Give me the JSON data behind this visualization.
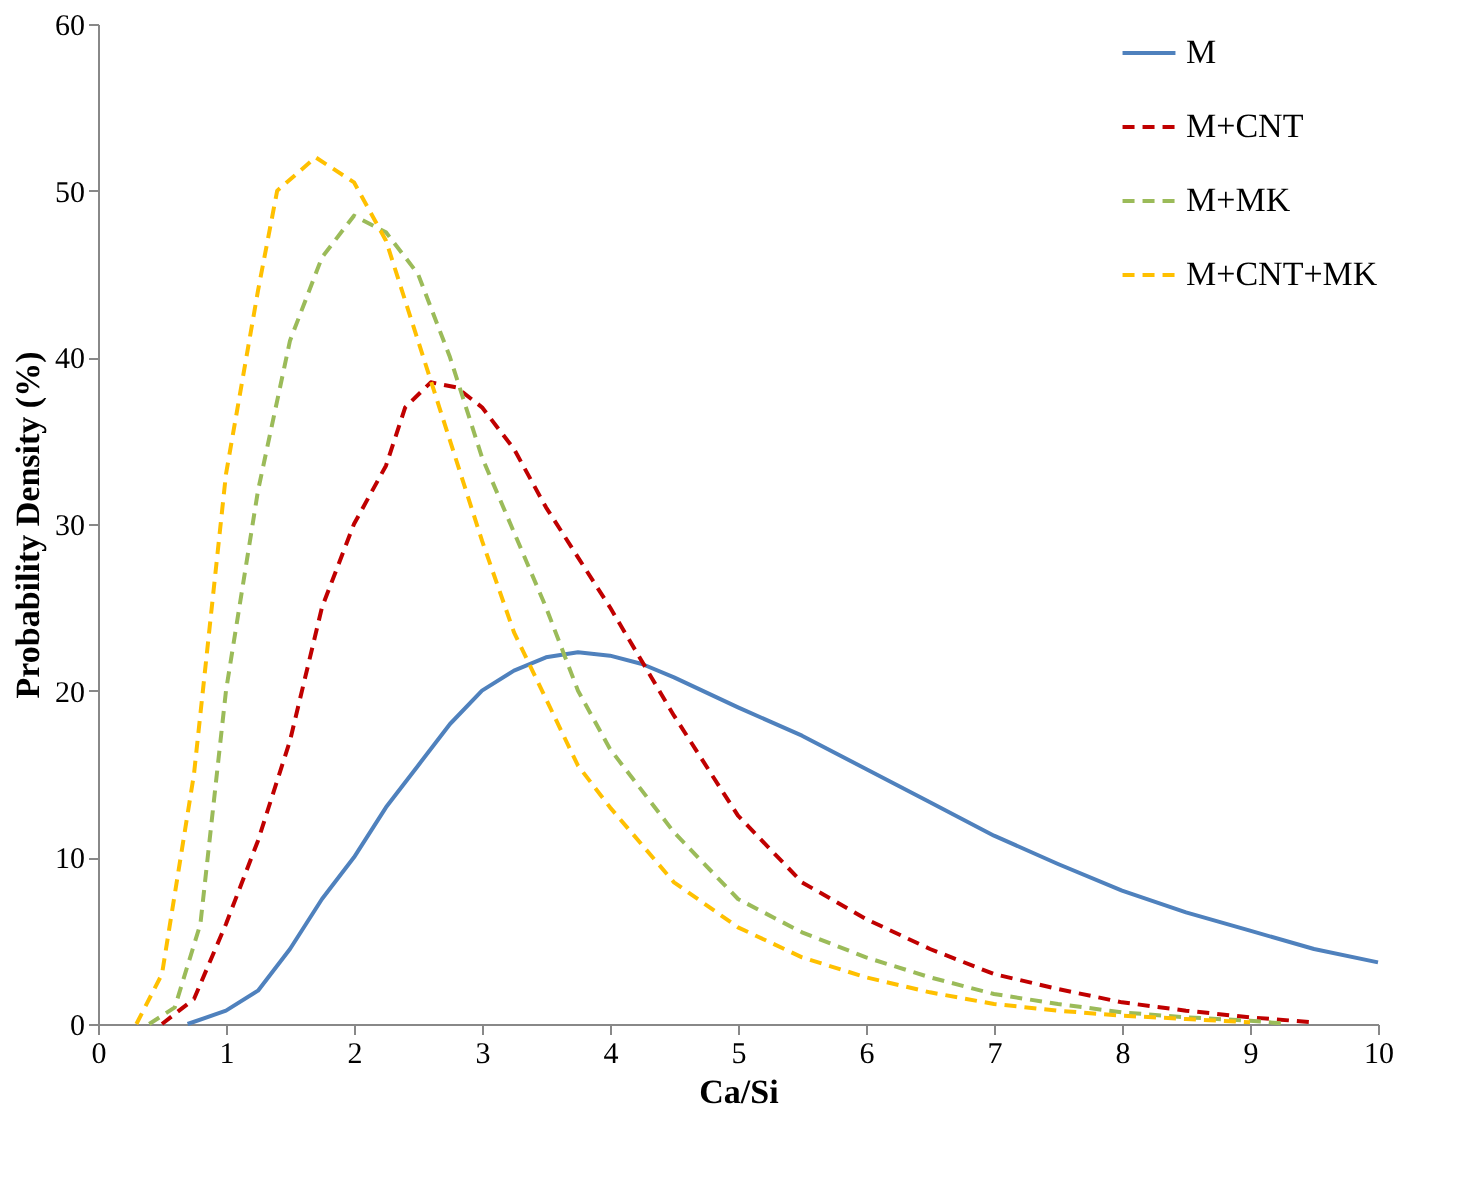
{
  "chart_data": {
    "type": "line",
    "xlabel": "Ca/Si",
    "ylabel": "Probability Density (%)",
    "xlim": [
      0,
      10
    ],
    "xticks": [
      0,
      1,
      2,
      3,
      4,
      5,
      6,
      7,
      8,
      9,
      10
    ],
    "ylim": [
      0,
      60
    ],
    "yticks": [
      0,
      10,
      20,
      30,
      40,
      50,
      60
    ],
    "grid": false,
    "legend": "top right",
    "marker": "none",
    "series": [
      {
        "name": "M",
        "color": "#4f81bd",
        "line_style": "solid",
        "x": [
          0.7,
          1,
          1.25,
          1.5,
          1.75,
          2,
          2.25,
          2.5,
          2.75,
          3,
          3.25,
          3.5,
          3.75,
          4,
          4.25,
          4.5,
          5,
          5.5,
          6,
          6.5,
          7,
          7.5,
          8,
          8.5,
          9,
          9.5,
          10
        ],
        "values": [
          0,
          0.8,
          2,
          4.5,
          7.5,
          10,
          13,
          15.5,
          18,
          20,
          21.2,
          22,
          22.3,
          22.1,
          21.6,
          20.8,
          19,
          17.3,
          15.3,
          13.3,
          11.3,
          9.6,
          8,
          6.7,
          5.6,
          4.5,
          3.7
        ]
      },
      {
        "name": "M+CNT",
        "color": "#c00000",
        "line_style": "dashed",
        "x": [
          0.5,
          0.75,
          1,
          1.25,
          1.5,
          1.75,
          2,
          2.25,
          2.4,
          2.6,
          2.8,
          3,
          3.25,
          3.5,
          3.75,
          4,
          4.5,
          5,
          5.5,
          6,
          6.5,
          7,
          7.5,
          8,
          8.5,
          9,
          9.5
        ],
        "values": [
          0,
          1.5,
          6,
          11,
          17,
          25,
          30,
          33.5,
          37,
          38.5,
          38.2,
          37,
          34.5,
          31,
          28,
          25,
          18.5,
          12.5,
          8.5,
          6.3,
          4.5,
          3,
          2.1,
          1.3,
          0.8,
          0.4,
          0.1
        ]
      },
      {
        "name": "M+MK",
        "color": "#9bbb59",
        "line_style": "dashed",
        "x": [
          0.4,
          0.6,
          0.8,
          1,
          1.25,
          1.5,
          1.75,
          2,
          2.25,
          2.5,
          2.75,
          3,
          3.25,
          3.5,
          3.75,
          4,
          4.5,
          5,
          5.5,
          6,
          6.5,
          7,
          7.5,
          8,
          8.5,
          9,
          9.3
        ],
        "values": [
          0,
          1,
          6,
          20,
          32,
          41,
          46,
          48.5,
          47.5,
          45,
          40,
          34,
          29.5,
          25,
          20,
          16.5,
          11.5,
          7.5,
          5.5,
          4,
          2.8,
          1.8,
          1.2,
          0.7,
          0.4,
          0.2,
          0
        ]
      },
      {
        "name": "M+CNT+MK",
        "color": "#ffc000",
        "line_style": "dashed",
        "x": [
          0.3,
          0.5,
          0.75,
          1,
          1.25,
          1.4,
          1.7,
          2,
          2.25,
          2.5,
          2.75,
          3,
          3.25,
          3.5,
          3.75,
          4,
          4.5,
          5,
          5.5,
          6,
          6.5,
          7,
          7.5,
          8,
          8.5,
          9
        ],
        "values": [
          0,
          3,
          15,
          33,
          44,
          50,
          52,
          50.5,
          47,
          41,
          35,
          29,
          23.5,
          19.5,
          15.5,
          13,
          8.5,
          5.8,
          4,
          2.8,
          1.9,
          1.2,
          0.8,
          0.5,
          0.3,
          0.1
        ]
      }
    ]
  }
}
